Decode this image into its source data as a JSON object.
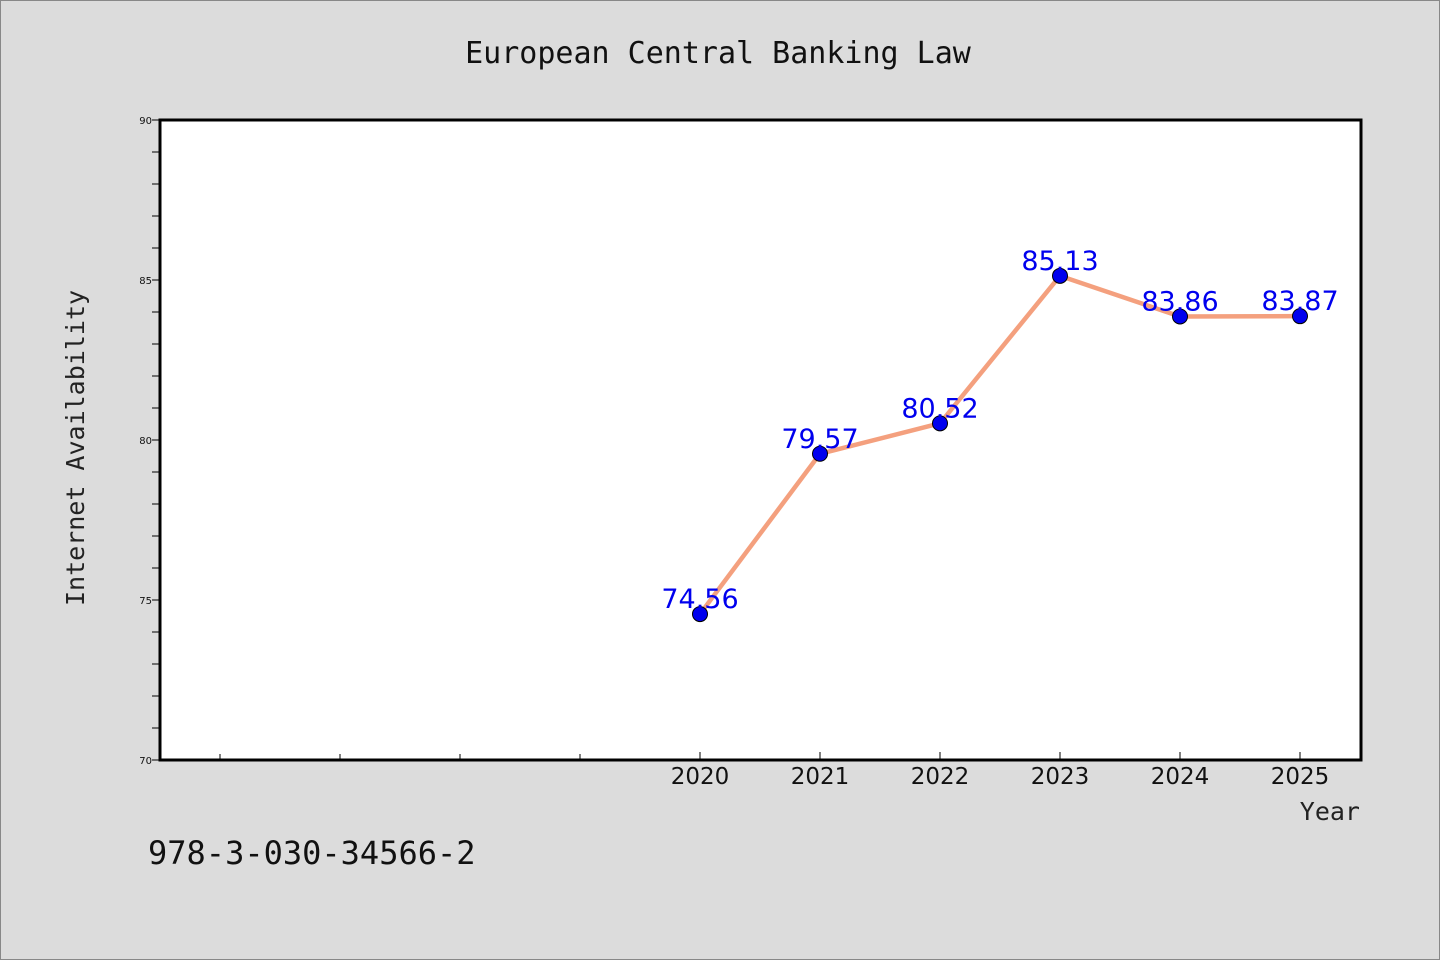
{
  "footer": {
    "code": "978-3-030-34566-2"
  },
  "chart_data": {
    "type": "line",
    "title": "European Central Banking Law",
    "xlabel": "Year",
    "ylabel": "Internet Availability",
    "x": [
      "2020",
      "2021",
      "2022",
      "2023",
      "2024",
      "2025"
    ],
    "series": [
      {
        "values": [
          74.56,
          79.57,
          80.52,
          85.13,
          83.86,
          83.87
        ]
      }
    ],
    "data_labels": [
      "74.56",
      "79.57",
      "80.52",
      "85.13",
      "83.86",
      "83.87"
    ],
    "ylim": [
      70,
      90
    ],
    "yticks": [
      70,
      75,
      80,
      85,
      90
    ],
    "ytick_labels": [
      "70",
      "75",
      "80",
      "85",
      "90"
    ],
    "grid": false,
    "line_color": "#f4a07e",
    "marker_color": "#0000ee",
    "label_color": "#0000ee",
    "background_color": "#dcdcdc",
    "plot_background": "#ffffff"
  }
}
